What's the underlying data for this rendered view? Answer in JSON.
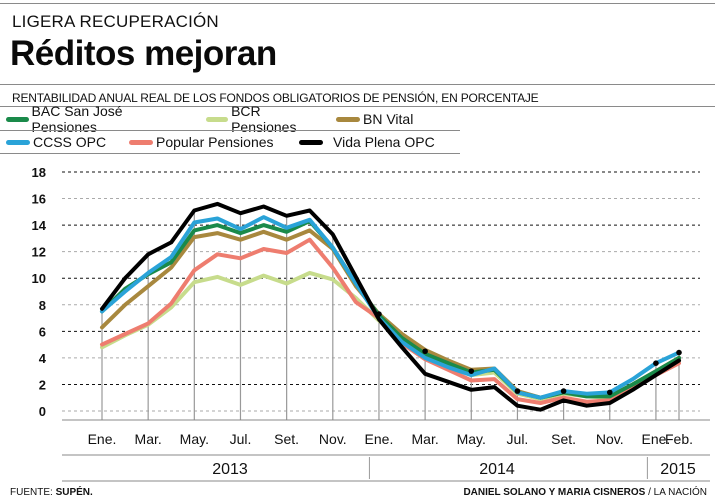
{
  "header": {
    "kicker": "LIGERA RECUPERACIÓN",
    "title": "Réditos mejoran",
    "subtitle": "RENTABILIDAD ANUAL REAL DE LOS FONDOS OBLIGATORIOS DE PENSIÓN, EN PORCENTAJE"
  },
  "footer": {
    "source_label": "FUENTE: ",
    "source_value": "SUPÉN.",
    "credit_authors": "DANIEL SOLANO Y MARIA CISNEROS",
    "credit_outlet": " / LA NACIÓN"
  },
  "chart_data": {
    "type": "line",
    "title": "Réditos mejoran",
    "subtitle": "RENTABILIDAD ANUAL REAL DE LOS FONDOS OBLIGATORIOS DE PENSIÓN, EN PORCENTAJE",
    "xlabel": "",
    "ylabel": "",
    "ylim": [
      0,
      18
    ],
    "yticks": [
      0,
      2,
      4,
      6,
      8,
      10,
      12,
      14,
      16,
      18
    ],
    "grid": true,
    "legend_position": "top",
    "x": [
      "Ene. 2013",
      "Feb. 2013",
      "Mar. 2013",
      "Abr. 2013",
      "May. 2013",
      "Jun. 2013",
      "Jul. 2013",
      "Ago. 2013",
      "Set. 2013",
      "Oct. 2013",
      "Nov. 2013",
      "Dic. 2013",
      "Ene. 2014",
      "Feb. 2014",
      "Mar. 2014",
      "Abr. 2014",
      "May. 2014",
      "Jun. 2014",
      "Jul. 2014",
      "Ago. 2014",
      "Set. 2014",
      "Oct. 2014",
      "Nov. 2014",
      "Dic. 2014",
      "Ene. 2015",
      "Feb. 2015"
    ],
    "xtick_labels": [
      {
        "index": 0,
        "label": "Ene."
      },
      {
        "index": 2,
        "label": "Mar."
      },
      {
        "index": 4,
        "label": "May."
      },
      {
        "index": 6,
        "label": "Jul."
      },
      {
        "index": 8,
        "label": "Set."
      },
      {
        "index": 10,
        "label": "Nov."
      },
      {
        "index": 12,
        "label": "Ene."
      },
      {
        "index": 14,
        "label": "Mar."
      },
      {
        "index": 16,
        "label": "May."
      },
      {
        "index": 18,
        "label": "Jul."
      },
      {
        "index": 20,
        "label": "Set."
      },
      {
        "index": 22,
        "label": "Nov."
      },
      {
        "index": 24,
        "label": "Ene."
      },
      {
        "index": 25,
        "label": "Feb."
      }
    ],
    "years": [
      {
        "label": "2013",
        "from": 0,
        "to": 11
      },
      {
        "label": "2014",
        "from": 12,
        "to": 23
      },
      {
        "label": "2015",
        "from": 24,
        "to": 25
      }
    ],
    "marker_points": [
      {
        "index": 12,
        "value": 7.3
      },
      {
        "index": 14,
        "value": 4.5
      },
      {
        "index": 16,
        "value": 3.0
      },
      {
        "index": 18,
        "value": 1.5
      },
      {
        "index": 20,
        "value": 1.5
      },
      {
        "index": 22,
        "value": 1.4
      },
      {
        "index": 24,
        "value": 3.6
      },
      {
        "index": 25,
        "value": 4.4
      }
    ],
    "series": [
      {
        "name": "BAC San José Pensiones",
        "color": "#1a8a4a",
        "values": [
          7.5,
          9.2,
          10.3,
          11.2,
          13.6,
          14.0,
          13.4,
          14.0,
          13.5,
          14.3,
          12.3,
          9.6,
          7.2,
          5.5,
          4.3,
          3.6,
          2.9,
          3.1,
          1.4,
          1.0,
          1.4,
          1.1,
          1.1,
          2.0,
          3.0,
          4.0
        ]
      },
      {
        "name": "BCR Pensiones",
        "color": "#c7dc8c",
        "values": [
          4.8,
          5.7,
          6.5,
          7.8,
          9.7,
          10.1,
          9.5,
          10.2,
          9.6,
          10.4,
          9.9,
          8.5,
          6.8,
          5.5,
          4.2,
          3.5,
          2.7,
          2.9,
          1.3,
          0.9,
          1.3,
          1.1,
          1.0,
          1.9,
          2.8,
          3.8
        ]
      },
      {
        "name": "BN Vital",
        "color": "#a8883e",
        "values": [
          6.3,
          8.0,
          9.4,
          10.8,
          13.1,
          13.4,
          12.9,
          13.5,
          12.9,
          13.6,
          12.2,
          9.4,
          7.3,
          5.8,
          4.6,
          3.8,
          3.1,
          3.2,
          1.5,
          1.0,
          1.4,
          1.2,
          1.1,
          2.0,
          3.0,
          4.0
        ]
      },
      {
        "name": "CCSS OPC",
        "color": "#2aa3d8",
        "values": [
          7.5,
          9.0,
          10.4,
          11.6,
          14.2,
          14.5,
          13.7,
          14.6,
          13.8,
          14.4,
          12.3,
          9.6,
          7.0,
          5.2,
          4.0,
          3.3,
          2.7,
          3.2,
          1.4,
          1.0,
          1.5,
          1.3,
          1.4,
          2.4,
          3.6,
          4.4
        ]
      },
      {
        "name": "Popular Pensiones",
        "color": "#ee7d6f",
        "values": [
          5.0,
          5.8,
          6.6,
          8.1,
          10.6,
          11.8,
          11.5,
          12.2,
          11.9,
          12.9,
          10.8,
          8.2,
          7.0,
          5.1,
          3.9,
          3.1,
          2.3,
          2.4,
          0.9,
          0.6,
          1.0,
          0.7,
          0.8,
          1.7,
          2.7,
          3.6
        ]
      },
      {
        "name": "Vida Plena OPC",
        "color": "#000000",
        "values": [
          7.7,
          10.0,
          11.8,
          12.7,
          15.1,
          15.6,
          14.9,
          15.4,
          14.7,
          15.1,
          13.3,
          10.1,
          6.9,
          4.8,
          2.8,
          2.2,
          1.6,
          1.8,
          0.4,
          0.1,
          0.8,
          0.4,
          0.6,
          1.6,
          2.7,
          3.8
        ]
      }
    ]
  }
}
